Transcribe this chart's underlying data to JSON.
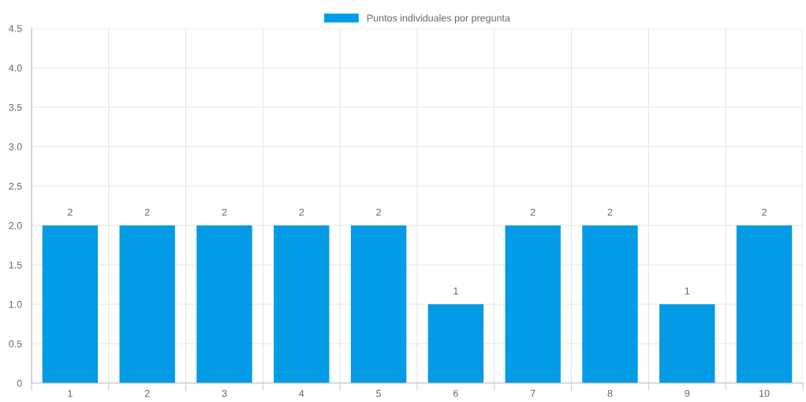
{
  "chart_data": {
    "type": "bar",
    "categories": [
      "1",
      "2",
      "3",
      "4",
      "5",
      "6",
      "7",
      "8",
      "9",
      "10"
    ],
    "series": [
      {
        "name": "Puntos individuales por pregunta",
        "color": "#039be5",
        "values": [
          2,
          2,
          2,
          2,
          2,
          1,
          2,
          2,
          1,
          2
        ]
      }
    ],
    "ylim": [
      0,
      4.5
    ],
    "yticks": [
      0,
      {
        "value": 0.5,
        "label": "0.5"
      },
      {
        "value": 1,
        "label": "1.0"
      },
      {
        "value": 1.5,
        "label": "1.5"
      },
      {
        "value": 2,
        "label": "2.0"
      },
      {
        "value": 2.5,
        "label": "2.5"
      },
      {
        "value": 3,
        "label": "3.0"
      },
      {
        "value": 3.5,
        "label": "3.5"
      },
      {
        "value": 4,
        "label": "4.0"
      },
      {
        "value": 4.5,
        "label": "4.5"
      }
    ],
    "grid": true,
    "legend": "top",
    "data_labels": true
  }
}
